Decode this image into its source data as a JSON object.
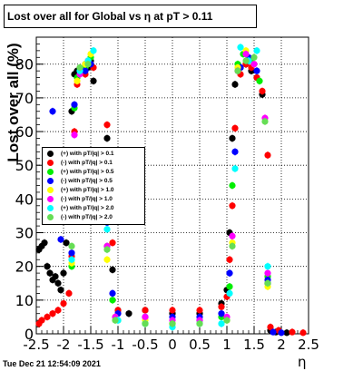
{
  "chart_data": {
    "type": "scatter",
    "title": "Lost over all for Global vs  η at pT > 0.11",
    "xlabel": "η",
    "ylabel": "Lost over all (%)",
    "xlim": [
      -2.5,
      2.5
    ],
    "ylim": [
      0,
      88
    ],
    "x_ticks": [
      "-2.5",
      "-2",
      "-1.5",
      "-1",
      "-0.5",
      "0",
      "0.5",
      "1",
      "1.5",
      "2",
      "2.5"
    ],
    "y_ticks": [
      "0",
      "10",
      "20",
      "30",
      "40",
      "50",
      "60",
      "70",
      "80"
    ],
    "x_tick_values": [
      -2.5,
      -2,
      -1.5,
      -1,
      -0.5,
      0,
      0.5,
      1,
      1.5,
      2,
      2.5
    ],
    "y_tick_values": [
      0,
      10,
      20,
      30,
      40,
      50,
      60,
      70,
      80
    ],
    "grid": true,
    "legend_position": "left-middle",
    "timestamp": "Tue Dec 21 12:54:09 2021",
    "series": [
      {
        "name": "(+) with pT/|q| > 0.1",
        "color": "#000000",
        "points": [
          [
            -2.45,
            25
          ],
          [
            -2.4,
            26
          ],
          [
            -2.35,
            27
          ],
          [
            -2.3,
            20
          ],
          [
            -2.25,
            18
          ],
          [
            -2.2,
            16
          ],
          [
            -2.15,
            17
          ],
          [
            -2.1,
            15
          ],
          [
            -2.05,
            13
          ],
          [
            -2.0,
            18
          ],
          [
            -1.95,
            27
          ],
          [
            -1.85,
            66
          ],
          [
            -1.8,
            77
          ],
          [
            -1.75,
            78
          ],
          [
            -1.6,
            80
          ],
          [
            -1.55,
            79
          ],
          [
            -1.5,
            81
          ],
          [
            -1.45,
            75
          ],
          [
            -1.2,
            58
          ],
          [
            -1.1,
            19
          ],
          [
            -1.0,
            7
          ],
          [
            -0.8,
            6
          ],
          [
            -0.5,
            7
          ],
          [
            0.0,
            6
          ],
          [
            0.5,
            6
          ],
          [
            0.9,
            9
          ],
          [
            1.0,
            13
          ],
          [
            1.05,
            30
          ],
          [
            1.1,
            58
          ],
          [
            1.15,
            74
          ],
          [
            1.25,
            79
          ],
          [
            1.35,
            80
          ],
          [
            1.45,
            78
          ],
          [
            1.55,
            76
          ],
          [
            1.65,
            71
          ],
          [
            1.75,
            15
          ],
          [
            1.8,
            1
          ],
          [
            1.9,
            0.5
          ],
          [
            2.1,
            0.3
          ]
        ]
      },
      {
        "name": "(-) with pT/|q| > 0.1",
        "color": "#ff0000",
        "points": [
          [
            -2.45,
            3
          ],
          [
            -2.4,
            4
          ],
          [
            -2.3,
            5
          ],
          [
            -2.2,
            6
          ],
          [
            -2.1,
            7
          ],
          [
            -2.0,
            9
          ],
          [
            -1.9,
            12
          ],
          [
            -1.85,
            23
          ],
          [
            -1.8,
            60
          ],
          [
            -1.75,
            74
          ],
          [
            -1.6,
            77
          ],
          [
            -1.5,
            80
          ],
          [
            -1.45,
            79
          ],
          [
            -1.2,
            62
          ],
          [
            -1.1,
            27
          ],
          [
            -1.0,
            7
          ],
          [
            -0.5,
            7
          ],
          [
            0.0,
            7
          ],
          [
            0.5,
            7
          ],
          [
            0.9,
            8
          ],
          [
            1.0,
            11
          ],
          [
            1.05,
            22
          ],
          [
            1.1,
            38
          ],
          [
            1.15,
            61
          ],
          [
            1.25,
            77
          ],
          [
            1.35,
            80
          ],
          [
            1.45,
            79
          ],
          [
            1.55,
            76
          ],
          [
            1.65,
            72
          ],
          [
            1.75,
            53
          ],
          [
            1.8,
            2
          ],
          [
            1.95,
            1
          ],
          [
            2.2,
            0.5
          ],
          [
            2.4,
            0.3
          ]
        ]
      },
      {
        "name": "(+) with pT/|q| > 0.5",
        "color": "#00ee00",
        "points": [
          [
            -1.85,
            20
          ],
          [
            -1.8,
            67
          ],
          [
            -1.75,
            76
          ],
          [
            -1.6,
            79
          ],
          [
            -1.5,
            82
          ],
          [
            -1.2,
            26
          ],
          [
            -1.1,
            10
          ],
          [
            -1.0,
            4
          ],
          [
            -0.5,
            3
          ],
          [
            0.0,
            3
          ],
          [
            0.5,
            4
          ],
          [
            0.9,
            5
          ],
          [
            1.05,
            14
          ],
          [
            1.1,
            44
          ],
          [
            1.2,
            80
          ],
          [
            1.3,
            83
          ],
          [
            1.45,
            81
          ],
          [
            1.6,
            75
          ],
          [
            1.75,
            17
          ]
        ]
      },
      {
        "name": "(-) with pT/|q| > 0.5",
        "color": "#0000ff",
        "points": [
          [
            -2.2,
            66
          ],
          [
            -2.05,
            28
          ],
          [
            -1.85,
            24
          ],
          [
            -1.8,
            68
          ],
          [
            -1.6,
            78
          ],
          [
            -1.5,
            80
          ],
          [
            -1.2,
            33
          ],
          [
            -1.1,
            12
          ],
          [
            -1.0,
            6
          ],
          [
            -0.5,
            5
          ],
          [
            0.0,
            5
          ],
          [
            0.5,
            5
          ],
          [
            0.9,
            6
          ],
          [
            1.05,
            18
          ],
          [
            1.15,
            54
          ],
          [
            1.25,
            79
          ],
          [
            1.4,
            82
          ],
          [
            1.55,
            78
          ],
          [
            1.75,
            16
          ],
          [
            1.85,
            0.5
          ],
          [
            2.0,
            0.3
          ]
        ]
      },
      {
        "name": "(+) with pT/|q| > 1.0",
        "color": "#ffff00",
        "points": [
          [
            -1.85,
            21
          ],
          [
            -1.75,
            75
          ],
          [
            -1.6,
            80
          ],
          [
            -1.5,
            83
          ],
          [
            -1.2,
            22
          ],
          [
            -1.05,
            5
          ],
          [
            -0.5,
            4
          ],
          [
            0.0,
            3
          ],
          [
            0.5,
            3
          ],
          [
            1.0,
            4
          ],
          [
            1.1,
            27
          ],
          [
            1.2,
            79
          ],
          [
            1.35,
            84
          ],
          [
            1.5,
            80
          ],
          [
            1.75,
            14
          ]
        ]
      },
      {
        "name": "(-) with pT/|q| > 1.0",
        "color": "#ff00ff",
        "points": [
          [
            -1.8,
            59
          ],
          [
            -1.7,
            77
          ],
          [
            -1.55,
            81
          ],
          [
            -1.2,
            26
          ],
          [
            -1.05,
            5
          ],
          [
            -0.5,
            5
          ],
          [
            0.0,
            4
          ],
          [
            0.5,
            4
          ],
          [
            1.0,
            5
          ],
          [
            1.1,
            29
          ],
          [
            1.2,
            78
          ],
          [
            1.35,
            83
          ],
          [
            1.5,
            80
          ],
          [
            1.7,
            64
          ],
          [
            1.75,
            18
          ]
        ]
      },
      {
        "name": "(+) with pT/|q| > 2.0",
        "color": "#00ffff",
        "points": [
          [
            -1.85,
            22
          ],
          [
            -1.7,
            78
          ],
          [
            -1.55,
            81
          ],
          [
            -1.45,
            84
          ],
          [
            -1.2,
            31
          ],
          [
            -1.0,
            4
          ],
          [
            -0.5,
            3
          ],
          [
            0.0,
            2
          ],
          [
            0.5,
            3
          ],
          [
            0.9,
            3
          ],
          [
            1.05,
            12
          ],
          [
            1.15,
            49
          ],
          [
            1.25,
            85
          ],
          [
            1.4,
            81
          ],
          [
            1.55,
            84
          ],
          [
            1.75,
            20
          ]
        ]
      },
      {
        "name": "(-) with pT/|q| > 2.0",
        "color": "#66dd55",
        "points": [
          [
            -1.85,
            26
          ],
          [
            -1.7,
            79
          ],
          [
            -1.55,
            80
          ],
          [
            -1.2,
            25
          ],
          [
            -1.05,
            4
          ],
          [
            -0.5,
            3
          ],
          [
            0.0,
            3
          ],
          [
            0.5,
            3
          ],
          [
            1.0,
            4
          ],
          [
            1.1,
            26
          ],
          [
            1.2,
            78
          ],
          [
            1.35,
            81
          ],
          [
            1.5,
            82
          ],
          [
            1.7,
            63
          ],
          [
            1.75,
            15
          ]
        ]
      }
    ]
  }
}
